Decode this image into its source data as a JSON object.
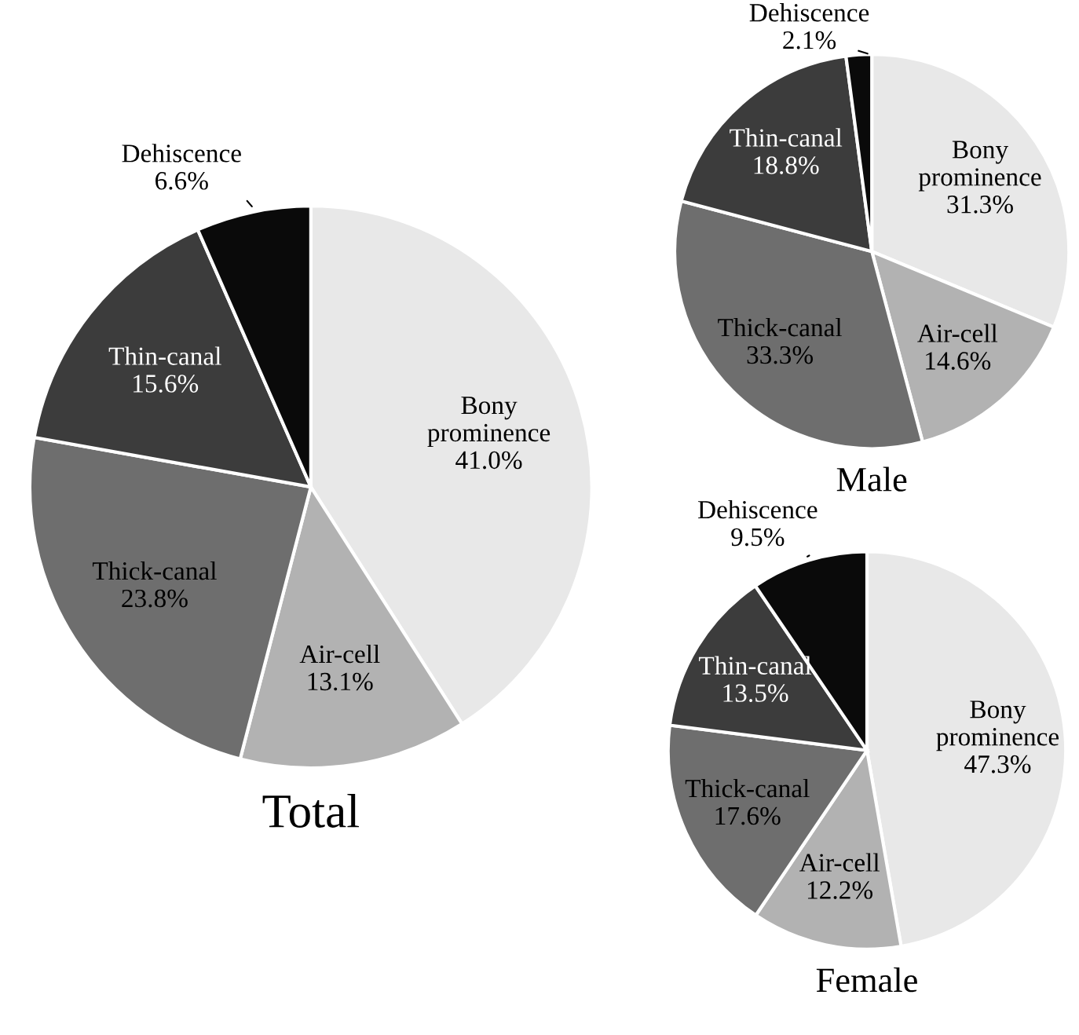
{
  "chart_data": [
    {
      "type": "pie",
      "title": "Total",
      "categories": [
        "Bony\nprominence",
        "Air-cell",
        "Thick-canal",
        "Thin-canal",
        "Dehiscence"
      ],
      "values": [
        41.0,
        13.1,
        23.8,
        15.6,
        6.6
      ],
      "value_labels": [
        "41.0%",
        "13.1%",
        "23.8%",
        "15.6%",
        "6.6%"
      ],
      "colors": [
        "#e8e8e8",
        "#b2b2b2",
        "#6e6e6e",
        "#3c3c3c",
        "#0a0a0a"
      ]
    },
    {
      "type": "pie",
      "title": "Male",
      "categories": [
        "Bony\nprominence",
        "Air-cell",
        "Thick-canal",
        "Thin-canal",
        "Dehiscence"
      ],
      "values": [
        31.3,
        14.6,
        33.3,
        18.8,
        2.1
      ],
      "value_labels": [
        "31.3%",
        "14.6%",
        "33.3%",
        "18.8%",
        "2.1%"
      ],
      "colors": [
        "#e8e8e8",
        "#b2b2b2",
        "#6e6e6e",
        "#3c3c3c",
        "#0a0a0a"
      ]
    },
    {
      "type": "pie",
      "title": "Female",
      "categories": [
        "Bony\nprominence",
        "Air-cell",
        "Thick-canal",
        "Thin-canal",
        "Dehiscence"
      ],
      "values": [
        47.3,
        12.2,
        17.6,
        13.5,
        9.5
      ],
      "value_labels": [
        "47.3%",
        "12.2%",
        "17.6%",
        "13.5%",
        "9.5%"
      ],
      "colors": [
        "#e8e8e8",
        "#b2b2b2",
        "#6e6e6e",
        "#3c3c3c",
        "#0a0a0a"
      ]
    }
  ]
}
